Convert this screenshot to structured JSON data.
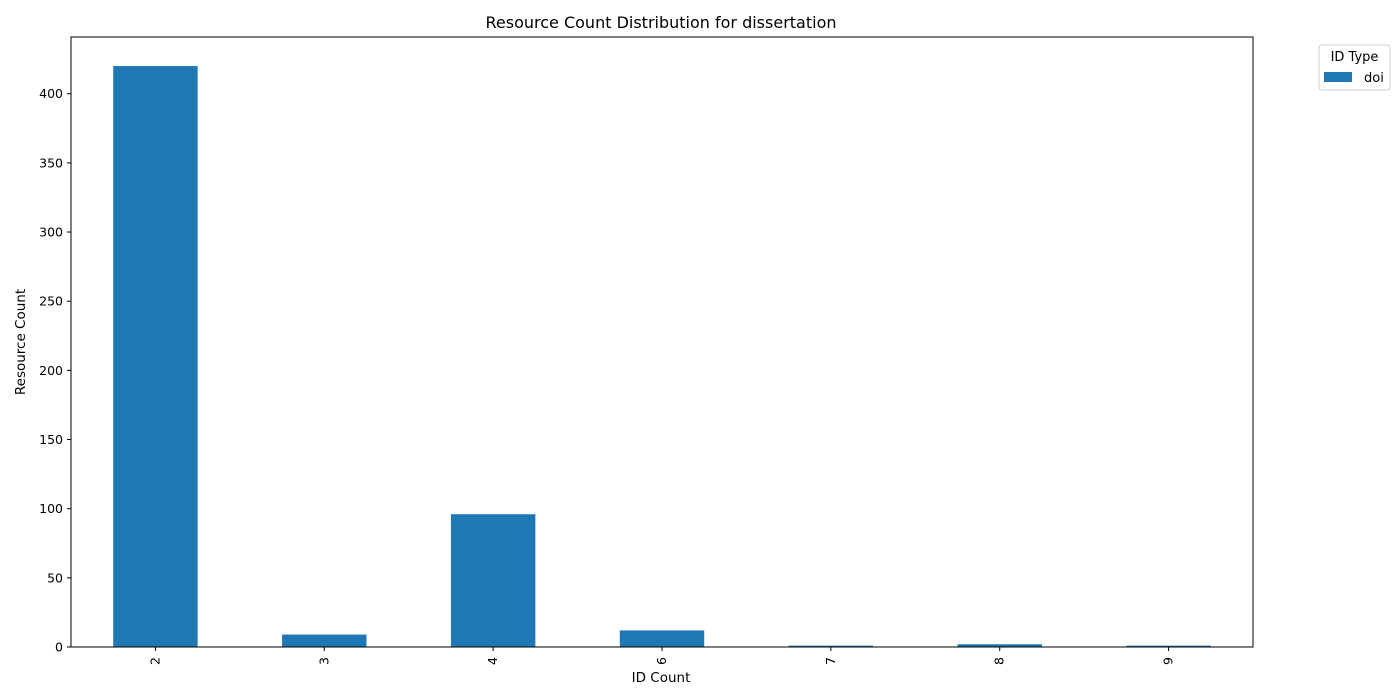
{
  "chart_data": {
    "type": "bar",
    "title": "Resource Count Distribution for dissertation",
    "xlabel": "ID Count",
    "ylabel": "Resource Count",
    "categories": [
      "2",
      "3",
      "4",
      "6",
      "7",
      "8",
      "9"
    ],
    "series": [
      {
        "name": "doi",
        "color": "#1f77b4",
        "values": [
          420,
          9,
          96,
          12,
          1,
          2,
          1
        ]
      }
    ],
    "ylim": [
      0,
      441
    ],
    "yticks": [
      0,
      50,
      100,
      150,
      200,
      250,
      300,
      350,
      400
    ],
    "grid": false,
    "legend": {
      "title": "ID Type",
      "placement": "outside-top-right"
    }
  }
}
